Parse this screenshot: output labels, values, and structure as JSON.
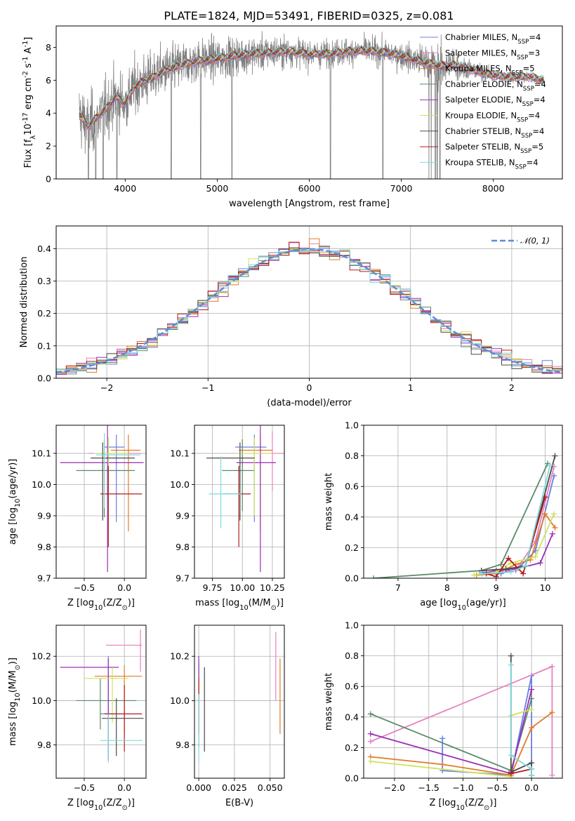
{
  "figure_title": "PLATE=1824, MJD=53491, FIBERID=0325, z=0.081",
  "models": [
    {
      "name": "Chabrier MILES, N$_{SSP}$=4",
      "color": "#6b7ee3"
    },
    {
      "name": "Salpeter MILES, N$_{SSP}$=3",
      "color": "#e87fbf"
    },
    {
      "name": "Kroupa MILES, N$_{SSP}$=5",
      "color": "#e07b2a"
    },
    {
      "name": "Chabrier ELODIE, N$_{SSP}$=4",
      "color": "#5a8a6a"
    },
    {
      "name": "Salpeter ELODIE, N$_{SSP}$=4",
      "color": "#9a2fb5"
    },
    {
      "name": "Kroupa ELODIE, N$_{SSP}$=4",
      "color": "#cfe35a"
    },
    {
      "name": "Chabrier STELIB, N$_{SSP}$=4",
      "color": "#4a4a4a"
    },
    {
      "name": "Salpeter STELIB, N$_{SSP}$=5",
      "color": "#b01c1c"
    },
    {
      "name": "Kroupa STELIB, N$_{SSP}$=4",
      "color": "#7fdada"
    }
  ],
  "chart_data": [
    {
      "id": "spectrum",
      "type": "line",
      "xlabel": "wavelength [Angstrom, rest frame]",
      "ylabel": "Flux [f$_\\lambda$10$^{-17}$ erg cm$^{-2}$ s$^{-1}$ A$^{-1}$]",
      "xlim": [
        3250,
        8750
      ],
      "ylim": [
        0,
        9.3
      ],
      "xticks": [
        4000,
        5000,
        6000,
        7000,
        8000
      ],
      "yticks": [
        0,
        2,
        4,
        6,
        8
      ],
      "data_color": "#808080",
      "continuum": [
        [
          3500,
          3.9
        ],
        [
          3600,
          3.2
        ],
        [
          3700,
          3.8
        ],
        [
          3800,
          4.3
        ],
        [
          3900,
          5.0
        ],
        [
          4000,
          4.6
        ],
        [
          4100,
          5.6
        ],
        [
          4200,
          5.9
        ],
        [
          4400,
          6.5
        ],
        [
          4600,
          6.9
        ],
        [
          4800,
          7.2
        ],
        [
          5000,
          7.3
        ],
        [
          5200,
          7.5
        ],
        [
          5400,
          7.6
        ],
        [
          5600,
          7.7
        ],
        [
          5800,
          7.75
        ],
        [
          6000,
          7.6
        ],
        [
          6200,
          7.6
        ],
        [
          6400,
          7.75
        ],
        [
          6600,
          7.8
        ],
        [
          6800,
          7.7
        ],
        [
          7000,
          7.5
        ],
        [
          7200,
          7.15
        ],
        [
          7400,
          6.9
        ],
        [
          7600,
          6.9
        ],
        [
          7800,
          6.6
        ],
        [
          8000,
          6.3
        ],
        [
          8200,
          6.2
        ],
        [
          8400,
          6.2
        ],
        [
          8550,
          6.0
        ]
      ],
      "data_noise": [
        [
          3500,
          3.0
        ],
        [
          4500,
          2.2
        ],
        [
          6000,
          1.3
        ],
        [
          7000,
          1.2
        ],
        [
          7400,
          2.0
        ],
        [
          7800,
          0.8
        ],
        [
          8550,
          0.4
        ]
      ],
      "drops": [
        3600,
        3680,
        3760,
        3910,
        4500,
        4820,
        5160,
        6230,
        6800,
        7370,
        7420
      ]
    },
    {
      "id": "residuals",
      "type": "histogram",
      "xlabel": "(data-model)/error",
      "ylabel": "Normed distribution",
      "xlim": [
        -2.5,
        2.5
      ],
      "ylim": [
        0,
        0.47
      ],
      "xticks": [
        -2,
        -1,
        0,
        1,
        2
      ],
      "yticks": [
        0.0,
        0.1,
        0.2,
        0.3,
        0.4
      ],
      "bin_width": 0.1,
      "reference": {
        "label": "$\\mathcal{N}(0,1)$",
        "color": "#5b8dd6",
        "mean": 0,
        "sigma": 1
      }
    },
    {
      "id": "age_vs_Z",
      "type": "errorbar",
      "xlabel": "Z [log$_{10}$(Z/Z$_\\odot$)]",
      "ylabel": "age  [log$_{10}$(age/yr)]",
      "xlim": [
        -0.85,
        0.27
      ],
      "ylim": [
        9.7,
        10.19
      ],
      "xticks": [
        -0.5,
        0.0
      ],
      "yticks": [
        9.7,
        9.8,
        9.9,
        10.0,
        10.1
      ],
      "points": [
        {
          "x": -0.1,
          "xerr": [
            0.15,
            0.1
          ],
          "y": 10.12,
          "yerr": [
            0.24,
            0.04
          ]
        },
        {
          "x": -0.2,
          "xerr": [
            0.25,
            0.42
          ],
          "y": 10.1,
          "yerr": [
            0.2,
            0.05
          ]
        },
        {
          "x": 0.05,
          "xerr": [
            0.22,
            0.15
          ],
          "y": 10.11,
          "yerr": [
            0.26,
            0.05
          ]
        },
        {
          "x": -0.25,
          "xerr": [
            0.35,
            0.38
          ],
          "y": 10.045,
          "yerr": [
            0.15,
            0.1
          ]
        },
        {
          "x": -0.21,
          "xerr": [
            0.59,
            0.45
          ],
          "y": 10.07,
          "yerr": [
            0.35,
            0.12
          ]
        },
        {
          "x": -0.2,
          "xerr": [
            0.18,
            0.25
          ],
          "y": 10.1,
          "yerr": [
            0.2,
            0.05
          ]
        },
        {
          "x": -0.27,
          "xerr": [
            0.15,
            0.4
          ],
          "y": 10.085,
          "yerr": [
            0.2,
            0.05
          ]
        },
        {
          "x": -0.2,
          "xerr": [
            0.1,
            0.42
          ],
          "y": 9.97,
          "yerr": [
            0.17,
            0.09
          ]
        },
        {
          "x": -0.25,
          "xerr": [
            0.1,
            0.45
          ],
          "y": 10.095,
          "yerr": [
            0.17,
            0.07
          ]
        }
      ]
    },
    {
      "id": "age_vs_mass",
      "type": "errorbar",
      "xlabel": "mass [log$_{10}$(M/M$_\\odot$)]",
      "xlim": [
        9.6,
        10.35
      ],
      "ylim": [
        9.7,
        10.19
      ],
      "xticks": [
        9.75,
        10.0,
        10.25
      ],
      "yticks": [
        9.7,
        9.8,
        9.9,
        10.0,
        10.1
      ],
      "points": [
        {
          "x": 10.1,
          "xerr": [
            0.16,
            0.1
          ],
          "y": 10.12,
          "yerr": [
            0.24,
            0.04
          ]
        },
        {
          "x": 10.25,
          "xerr": [
            0.14,
            0.1
          ],
          "y": 10.1,
          "yerr": [
            0.12,
            0.07
          ]
        },
        {
          "x": 10.15,
          "xerr": [
            0.18,
            0.1
          ],
          "y": 10.11,
          "yerr": [
            0.26,
            0.05
          ]
        },
        {
          "x": 10.0,
          "xerr": [
            0.17,
            0.1
          ],
          "y": 10.045,
          "yerr": [
            0.13,
            0.1
          ]
        },
        {
          "x": 10.15,
          "xerr": [
            0.2,
            0.13
          ],
          "y": 10.07,
          "yerr": [
            0.35,
            0.12
          ]
        },
        {
          "x": 10.1,
          "xerr": [
            0.15,
            0.15
          ],
          "y": 10.1,
          "yerr": [
            0.2,
            0.05
          ]
        },
        {
          "x": 9.98,
          "xerr": [
            0.28,
            0.12
          ],
          "y": 10.085,
          "yerr": [
            0.2,
            0.05
          ]
        },
        {
          "x": 9.97,
          "xerr": [
            0.13,
            0.1
          ],
          "y": 9.97,
          "yerr": [
            0.17,
            0.09
          ]
        },
        {
          "x": 9.82,
          "xerr": [
            0.1,
            0.17
          ],
          "y": 9.97,
          "yerr": [
            0.11,
            0.12
          ]
        }
      ]
    },
    {
      "id": "massweight_vs_age",
      "type": "line",
      "xlabel": "age  [log$_{10}$(age/yr)]",
      "ylabel": "mass weight",
      "xlim": [
        6.3,
        10.35
      ],
      "ylim": [
        0,
        1
      ],
      "xticks": [
        7,
        8,
        9,
        10
      ],
      "yticks": [
        0.0,
        0.2,
        0.4,
        0.6,
        0.8,
        1.0
      ],
      "series": [
        {
          "x": [
            8.7,
            9.1,
            9.5,
            9.8,
            10.18
          ],
          "y": [
            0.04,
            0.03,
            0.08,
            0.18,
            0.67
          ]
        },
        {
          "x": [
            8.8,
            9.4,
            9.8,
            10.18
          ],
          "y": [
            0.03,
            0.05,
            0.24,
            0.73
          ]
        },
        {
          "x": [
            8.6,
            9.0,
            9.4,
            9.7,
            10.0,
            10.2
          ],
          "y": [
            0.02,
            0.03,
            0.09,
            0.12,
            0.42,
            0.33
          ]
        },
        {
          "x": [
            6.5,
            8.7,
            9.1,
            10.05
          ],
          "y": [
            0.0,
            0.05,
            0.09,
            0.75
          ]
        },
        {
          "x": [
            8.7,
            9.0,
            9.4,
            9.9,
            10.15
          ],
          "y": [
            0.03,
            0.05,
            0.06,
            0.1,
            0.29
          ]
        },
        {
          "x": [
            8.55,
            9.0,
            9.3,
            9.8,
            10.18
          ],
          "y": [
            0.02,
            0.04,
            0.1,
            0.14,
            0.42
          ]
        },
        {
          "x": [
            8.7,
            9.2,
            9.6,
            10.2
          ],
          "y": [
            0.05,
            0.06,
            0.08,
            0.8
          ]
        },
        {
          "x": [
            8.8,
            9.0,
            9.25,
            9.55,
            10.0
          ],
          "y": [
            0.03,
            0.01,
            0.13,
            0.03,
            0.53
          ]
        },
        {
          "x": [
            8.7,
            9.3,
            9.6,
            10.1
          ],
          "y": [
            0.03,
            0.04,
            0.08,
            0.74
          ]
        }
      ]
    },
    {
      "id": "mass_vs_Z",
      "type": "errorbar",
      "xlabel": "Z [log$_{10}$(Z/Z$_\\odot$)]",
      "ylabel": "mass [log$_{10}$(M/M$_\\odot$)]",
      "xlim": [
        -0.85,
        0.27
      ],
      "ylim": [
        9.65,
        10.34
      ],
      "xticks": [
        -0.5,
        0.0
      ],
      "yticks": [
        9.8,
        10.0,
        10.2
      ],
      "points": [
        {
          "x": -0.2,
          "xerr": [
            0.1,
            0.1
          ],
          "y": 9.94,
          "yerr": [
            0.2,
            0.26
          ]
        },
        {
          "x": 0.2,
          "xerr": [
            0.43,
            0.02
          ],
          "y": 10.25,
          "yerr": [
            0.12,
            0.07
          ]
        },
        {
          "x": 0.0,
          "xerr": [
            0.37,
            0.22
          ],
          "y": 10.11,
          "yerr": [
            0.26,
            0.05
          ]
        },
        {
          "x": -0.3,
          "xerr": [
            0.3,
            0.45
          ],
          "y": 10.0,
          "yerr": [
            0.13,
            0.1
          ]
        },
        {
          "x": -0.2,
          "xerr": [
            0.6,
            0.13
          ],
          "y": 10.15,
          "yerr": [
            0.42,
            0.04
          ]
        },
        {
          "x": -0.15,
          "xerr": [
            0.35,
            0.2
          ],
          "y": 10.1,
          "yerr": [
            0.2,
            0.05
          ]
        },
        {
          "x": -0.1,
          "xerr": [
            0.18,
            0.34
          ],
          "y": 9.92,
          "yerr": [
            0.17,
            0.09
          ]
        },
        {
          "x": 0.0,
          "xerr": [
            0.25,
            0.22
          ],
          "y": 9.94,
          "yerr": [
            0.17,
            0.13
          ]
        },
        {
          "x": -0.2,
          "xerr": [
            0.1,
            0.42
          ],
          "y": 9.82,
          "yerr": [
            0.1,
            0.12
          ]
        }
      ]
    },
    {
      "id": "mass_vs_ebv",
      "type": "errorbar",
      "xlabel": "E(B-V)",
      "xlim": [
        -0.003,
        0.06
      ],
      "ylim": [
        9.65,
        10.34
      ],
      "xticks": [
        0.0,
        0.025,
        0.05
      ],
      "yticks": [
        9.8,
        10.0,
        10.2
      ],
      "points": [
        {
          "x": 0.0,
          "y": 10.05,
          "yerr": [
            0.2,
            0.13
          ]
        },
        {
          "x": 0.054,
          "y": 10.13,
          "yerr": [
            0.13,
            0.18
          ]
        },
        {
          "x": 0.057,
          "y": 10.02,
          "yerr": [
            0.17,
            0.17
          ]
        },
        {
          "x": 0.0,
          "y": 9.99,
          "yerr": [
            0.2,
            0.17
          ]
        },
        {
          "x": 0.0,
          "y": 10.1,
          "yerr": [
            0.16,
            0.1
          ]
        },
        {
          "x": 0.0,
          "y": 10.0,
          "yerr": [
            0.15,
            0.1
          ]
        },
        {
          "x": 0.004,
          "y": 9.95,
          "yerr": [
            0.18,
            0.2
          ]
        },
        {
          "x": 0.0,
          "y": 10.0,
          "yerr": [
            0.15,
            0.1
          ]
        },
        {
          "x": 0.0,
          "y": 9.85,
          "yerr": [
            0.13,
            0.18
          ]
        }
      ]
    },
    {
      "id": "massweight_vs_Z",
      "type": "line",
      "xlabel": "Z [log$_{10}$(Z/Z$_\\odot$)]",
      "ylabel": "mass weight",
      "xlim": [
        -2.45,
        0.45
      ],
      "ylim": [
        0,
        1
      ],
      "xticks": [
        -2.0,
        -1.5,
        -1.0,
        -0.5,
        0.0
      ],
      "yticks": [
        0.0,
        0.2,
        0.4,
        0.6,
        0.8,
        1.0
      ],
      "series": [
        {
          "x": [
            -1.3,
            -1.3,
            -0.3,
            0.0,
            0.0
          ],
          "y": [
            0.26,
            0.05,
            0.02,
            0.67,
            0.02
          ]
        },
        {
          "x": [
            -2.35,
            0.3,
            0.3
          ],
          "y": [
            0.24,
            0.73,
            0.02
          ]
        },
        {
          "x": [
            -2.35,
            -1.3,
            -0.3,
            0.0,
            0.3
          ],
          "y": [
            0.14,
            0.09,
            0.02,
            0.33,
            0.43
          ]
        },
        {
          "x": [
            -2.35,
            -0.3,
            0.0
          ],
          "y": [
            0.42,
            0.05,
            0.52
          ]
        },
        {
          "x": [
            -2.35,
            -0.3,
            0.0
          ],
          "y": [
            0.29,
            0.03,
            0.58
          ]
        },
        {
          "x": [
            -2.35,
            -0.3,
            -0.3,
            0.0
          ],
          "y": [
            0.11,
            0.01,
            0.41,
            0.45
          ]
        },
        {
          "x": [
            -0.3,
            -0.3,
            0.0,
            0.0
          ],
          "y": [
            0.8,
            0.04,
            0.1,
            0.02
          ]
        },
        {
          "x": [
            -0.3,
            0.0,
            0.0
          ],
          "y": [
            0.03,
            0.06,
            0.02
          ]
        },
        {
          "x": [
            -0.3,
            -0.3,
            0.0,
            0.0
          ],
          "y": [
            0.74,
            0.15,
            0.06,
            0.02
          ]
        }
      ]
    }
  ]
}
